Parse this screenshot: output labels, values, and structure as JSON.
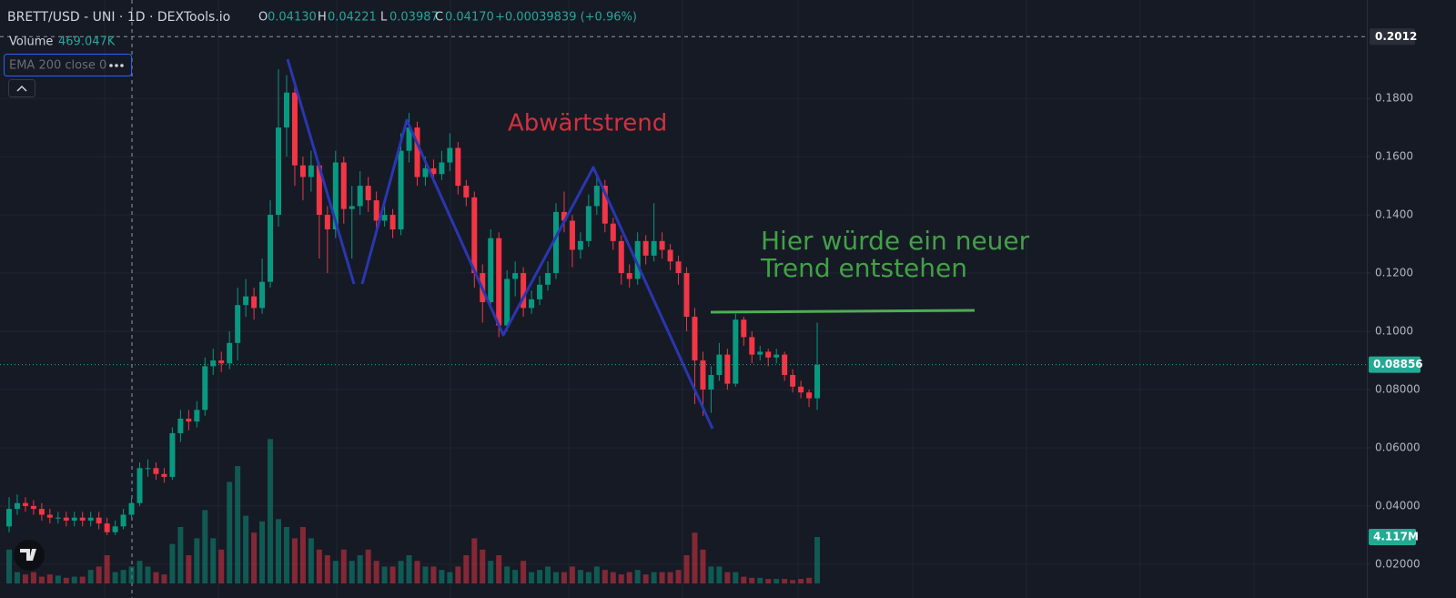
{
  "header": {
    "symbol": "BRETT/USD - UNI · 1D · DEXTools.io",
    "o_label": "O",
    "o": "0.04130",
    "h_label": "H",
    "h": "0.04221",
    "l_label": "L",
    "l": "0.03987",
    "c_label": "C",
    "c": "0.04170",
    "change": "+0.00039839 (+0.96%)",
    "volume_label": "Volume",
    "volume": "469.047K",
    "indicator": "EMA 200 close 0"
  },
  "chart_data": {
    "type": "candlestick",
    "annotations": [
      "Abwärtstrend",
      "Hier würde ein neuer",
      "Trend entstehen"
    ],
    "up_color": "#089981",
    "down_color": "#f23645",
    "grid": true,
    "ylim": [
      0.0134,
      0.2138
    ],
    "yticks": [
      {
        "value": 0.18,
        "label": "0.1800"
      },
      {
        "value": 0.16,
        "label": "0.1600"
      },
      {
        "value": 0.14,
        "label": "0.1400"
      },
      {
        "value": 0.12,
        "label": "0.1200"
      },
      {
        "value": 0.1,
        "label": "0.1000"
      },
      {
        "value": 0.08,
        "label": "0.08000"
      },
      {
        "value": 0.06,
        "label": "0.06000"
      },
      {
        "value": 0.04,
        "label": "0.04000"
      },
      {
        "value": 0.02,
        "label": "0.02000"
      }
    ],
    "volume_ylim": [
      0,
      51700000
    ],
    "crosshair_price": 0.2012,
    "last_price": 0.08856,
    "last_volume": {
      "value": 4117000,
      "label": "4.117M"
    },
    "ohlc": [
      [
        0.033,
        0.043,
        0.031,
        0.039
      ],
      [
        0.039,
        0.044,
        0.037,
        0.041
      ],
      [
        0.041,
        0.043,
        0.038,
        0.04
      ],
      [
        0.04,
        0.042,
        0.037,
        0.039
      ],
      [
        0.039,
        0.041,
        0.035,
        0.037
      ],
      [
        0.037,
        0.039,
        0.034,
        0.036
      ],
      [
        0.036,
        0.038,
        0.034,
        0.036
      ],
      [
        0.036,
        0.038,
        0.033,
        0.035
      ],
      [
        0.035,
        0.038,
        0.033,
        0.036
      ],
      [
        0.036,
        0.038,
        0.033,
        0.035
      ],
      [
        0.035,
        0.038,
        0.033,
        0.036
      ],
      [
        0.036,
        0.038,
        0.032,
        0.034
      ],
      [
        0.034,
        0.036,
        0.03,
        0.031
      ],
      [
        0.031,
        0.035,
        0.03,
        0.033
      ],
      [
        0.033,
        0.039,
        0.032,
        0.037
      ],
      [
        0.037,
        0.043,
        0.036,
        0.041
      ],
      [
        0.041,
        0.055,
        0.04,
        0.053
      ],
      [
        0.053,
        0.056,
        0.05,
        0.053
      ],
      [
        0.053,
        0.055,
        0.049,
        0.051
      ],
      [
        0.051,
        0.053,
        0.048,
        0.05
      ],
      [
        0.05,
        0.067,
        0.049,
        0.065
      ],
      [
        0.065,
        0.073,
        0.062,
        0.07
      ],
      [
        0.07,
        0.073,
        0.066,
        0.069
      ],
      [
        0.069,
        0.076,
        0.067,
        0.073
      ],
      [
        0.073,
        0.091,
        0.071,
        0.088
      ],
      [
        0.088,
        0.094,
        0.085,
        0.09
      ],
      [
        0.09,
        0.093,
        0.086,
        0.089
      ],
      [
        0.089,
        0.1,
        0.087,
        0.096
      ],
      [
        0.096,
        0.115,
        0.09,
        0.109
      ],
      [
        0.109,
        0.118,
        0.105,
        0.112
      ],
      [
        0.112,
        0.115,
        0.104,
        0.108
      ],
      [
        0.108,
        0.125,
        0.106,
        0.117
      ],
      [
        0.117,
        0.145,
        0.115,
        0.14
      ],
      [
        0.14,
        0.19,
        0.136,
        0.17
      ],
      [
        0.17,
        0.188,
        0.16,
        0.182
      ],
      [
        0.182,
        0.185,
        0.15,
        0.157
      ],
      [
        0.157,
        0.16,
        0.145,
        0.153
      ],
      [
        0.153,
        0.162,
        0.148,
        0.157
      ],
      [
        0.157,
        0.158,
        0.125,
        0.14
      ],
      [
        0.14,
        0.143,
        0.12,
        0.135
      ],
      [
        0.135,
        0.162,
        0.132,
        0.158
      ],
      [
        0.158,
        0.16,
        0.137,
        0.142
      ],
      [
        0.142,
        0.15,
        0.125,
        0.143
      ],
      [
        0.143,
        0.155,
        0.14,
        0.15
      ],
      [
        0.15,
        0.153,
        0.141,
        0.145
      ],
      [
        0.145,
        0.148,
        0.135,
        0.138
      ],
      [
        0.138,
        0.145,
        0.136,
        0.14
      ],
      [
        0.14,
        0.142,
        0.132,
        0.135
      ],
      [
        0.135,
        0.168,
        0.133,
        0.162
      ],
      [
        0.162,
        0.175,
        0.158,
        0.17
      ],
      [
        0.17,
        0.172,
        0.15,
        0.153
      ],
      [
        0.153,
        0.16,
        0.15,
        0.156
      ],
      [
        0.156,
        0.159,
        0.151,
        0.154
      ],
      [
        0.154,
        0.162,
        0.152,
        0.158
      ],
      [
        0.158,
        0.168,
        0.155,
        0.163
      ],
      [
        0.163,
        0.165,
        0.147,
        0.15
      ],
      [
        0.15,
        0.152,
        0.143,
        0.146
      ],
      [
        0.146,
        0.148,
        0.115,
        0.12
      ],
      [
        0.12,
        0.123,
        0.103,
        0.11
      ],
      [
        0.11,
        0.135,
        0.108,
        0.132
      ],
      [
        0.132,
        0.134,
        0.098,
        0.102
      ],
      [
        0.102,
        0.121,
        0.1,
        0.118
      ],
      [
        0.118,
        0.124,
        0.112,
        0.12
      ],
      [
        0.12,
        0.122,
        0.105,
        0.108
      ],
      [
        0.108,
        0.114,
        0.106,
        0.111
      ],
      [
        0.111,
        0.119,
        0.109,
        0.116
      ],
      [
        0.116,
        0.124,
        0.114,
        0.12
      ],
      [
        0.12,
        0.144,
        0.118,
        0.141
      ],
      [
        0.141,
        0.148,
        0.134,
        0.138
      ],
      [
        0.138,
        0.14,
        0.122,
        0.128
      ],
      [
        0.128,
        0.134,
        0.125,
        0.131
      ],
      [
        0.131,
        0.147,
        0.129,
        0.143
      ],
      [
        0.143,
        0.153,
        0.14,
        0.15
      ],
      [
        0.15,
        0.152,
        0.134,
        0.137
      ],
      [
        0.137,
        0.139,
        0.128,
        0.131
      ],
      [
        0.131,
        0.133,
        0.116,
        0.12
      ],
      [
        0.12,
        0.123,
        0.115,
        0.118
      ],
      [
        0.118,
        0.134,
        0.116,
        0.131
      ],
      [
        0.131,
        0.133,
        0.123,
        0.126
      ],
      [
        0.126,
        0.144,
        0.124,
        0.131
      ],
      [
        0.131,
        0.134,
        0.125,
        0.128
      ],
      [
        0.128,
        0.13,
        0.121,
        0.124
      ],
      [
        0.124,
        0.126,
        0.116,
        0.12
      ],
      [
        0.12,
        0.122,
        0.1,
        0.105
      ],
      [
        0.105,
        0.108,
        0.075,
        0.09
      ],
      [
        0.09,
        0.093,
        0.071,
        0.08
      ],
      [
        0.08,
        0.088,
        0.072,
        0.085
      ],
      [
        0.085,
        0.096,
        0.083,
        0.092
      ],
      [
        0.092,
        0.094,
        0.08,
        0.082
      ],
      [
        0.082,
        0.106,
        0.081,
        0.104
      ],
      [
        0.104,
        0.105,
        0.095,
        0.098
      ],
      [
        0.098,
        0.1,
        0.089,
        0.092
      ],
      [
        0.092,
        0.095,
        0.09,
        0.093
      ],
      [
        0.093,
        0.094,
        0.088,
        0.091
      ],
      [
        0.091,
        0.094,
        0.089,
        0.092
      ],
      [
        0.092,
        0.093,
        0.083,
        0.085
      ],
      [
        0.085,
        0.087,
        0.079,
        0.081
      ],
      [
        0.081,
        0.083,
        0.077,
        0.079
      ],
      [
        0.079,
        0.08,
        0.074,
        0.077
      ],
      [
        0.077,
        0.103,
        0.073,
        0.0885
      ]
    ],
    "volume": [
      3000000,
      1000000,
      800000,
      1000000,
      600000,
      800000,
      700000,
      500000,
      600000,
      600000,
      1200000,
      1500000,
      2500000,
      1000000,
      1200000,
      1500000,
      2000000,
      1500000,
      1000000,
      800000,
      3500000,
      5000000,
      2500000,
      4000000,
      6500000,
      4000000,
      3000000,
      9000000,
      10400000,
      6000000,
      4500000,
      5500000,
      12800000,
      5700000,
      5000000,
      4000000,
      5000000,
      4000000,
      3000000,
      2500000,
      2000000,
      3000000,
      2000000,
      2500000,
      3000000,
      2000000,
      1500000,
      1500000,
      2000000,
      2500000,
      2000000,
      1500000,
      1500000,
      1200000,
      1000000,
      1500000,
      2500000,
      4000000,
      3000000,
      2000000,
      2500000,
      1500000,
      1200000,
      2000000,
      1000000,
      1200000,
      1500000,
      1000000,
      1000000,
      1500000,
      1200000,
      1000000,
      1500000,
      1200000,
      1000000,
      800000,
      1000000,
      1200000,
      800000,
      1000000,
      1000000,
      1000000,
      1200000,
      2500000,
      4500000,
      3000000,
      1500000,
      1500000,
      1000000,
      1000000,
      600000,
      500000,
      500000,
      400000,
      400000,
      400000,
      300000,
      400000,
      500000,
      4117000
    ]
  }
}
